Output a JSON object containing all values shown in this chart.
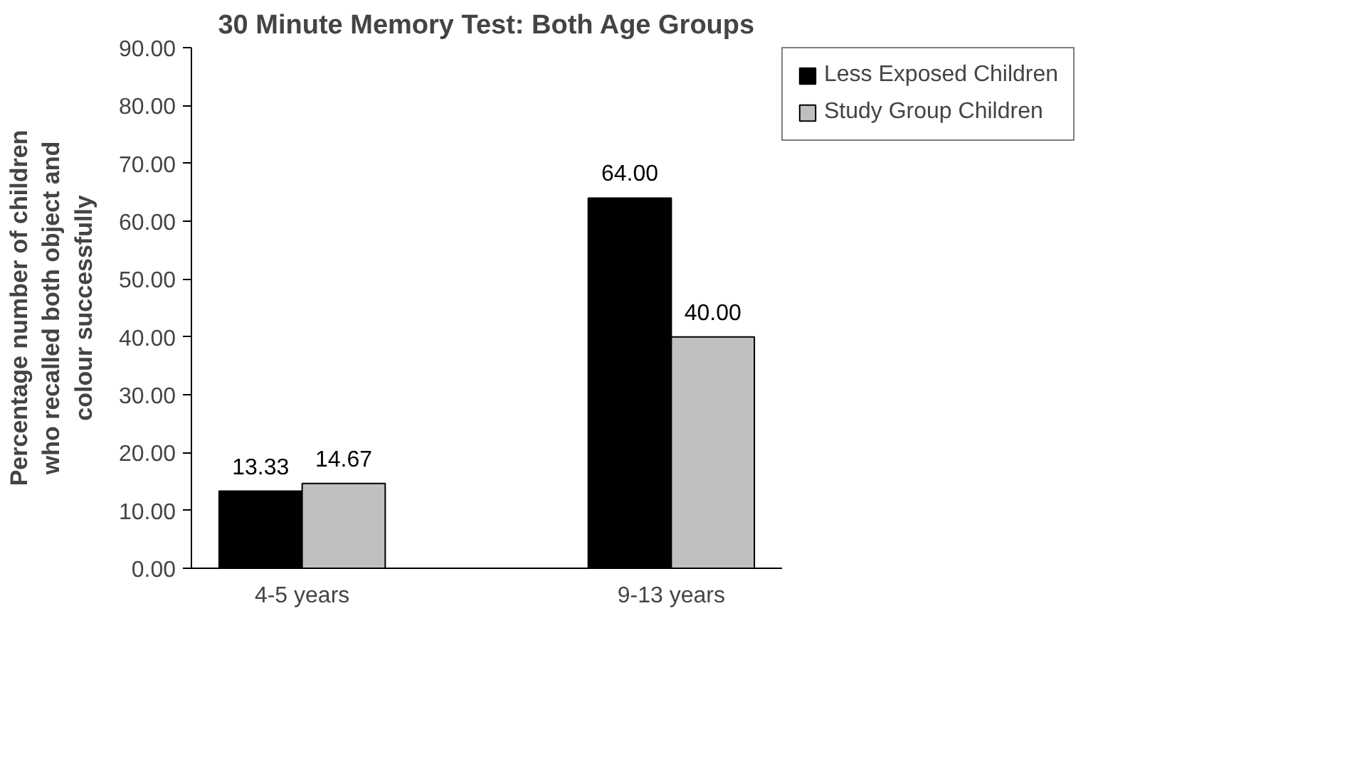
{
  "chart_data": {
    "type": "bar",
    "title": "30 Minute Memory Test: Both Age Groups",
    "ylabel": "Percentage number of children who recalled both object and colour successfully",
    "categories": [
      "4-5 years",
      "9-13 years"
    ],
    "series": [
      {
        "name": "Less Exposed Children",
        "color": "#000000",
        "values": [
          13.33,
          64.0
        ],
        "value_labels": [
          "13.33",
          "64.00"
        ]
      },
      {
        "name": "Study Group Children",
        "color": "#c0c0c0",
        "values": [
          14.67,
          40.0
        ],
        "value_labels": [
          "14.67",
          "40.00"
        ]
      }
    ],
    "ylim": [
      0,
      90
    ],
    "yticks": [
      {
        "value": 0,
        "label": "0.00"
      },
      {
        "value": 10,
        "label": "10.00"
      },
      {
        "value": 20,
        "label": "20.00"
      },
      {
        "value": 30,
        "label": "30.00"
      },
      {
        "value": 40,
        "label": "40.00"
      },
      {
        "value": 50,
        "label": "50.00"
      },
      {
        "value": 60,
        "label": "60.00"
      },
      {
        "value": 70,
        "label": "70.00"
      },
      {
        "value": 80,
        "label": "80.00"
      },
      {
        "value": 90,
        "label": "90.00"
      }
    ],
    "grid": false,
    "legend": "right"
  }
}
